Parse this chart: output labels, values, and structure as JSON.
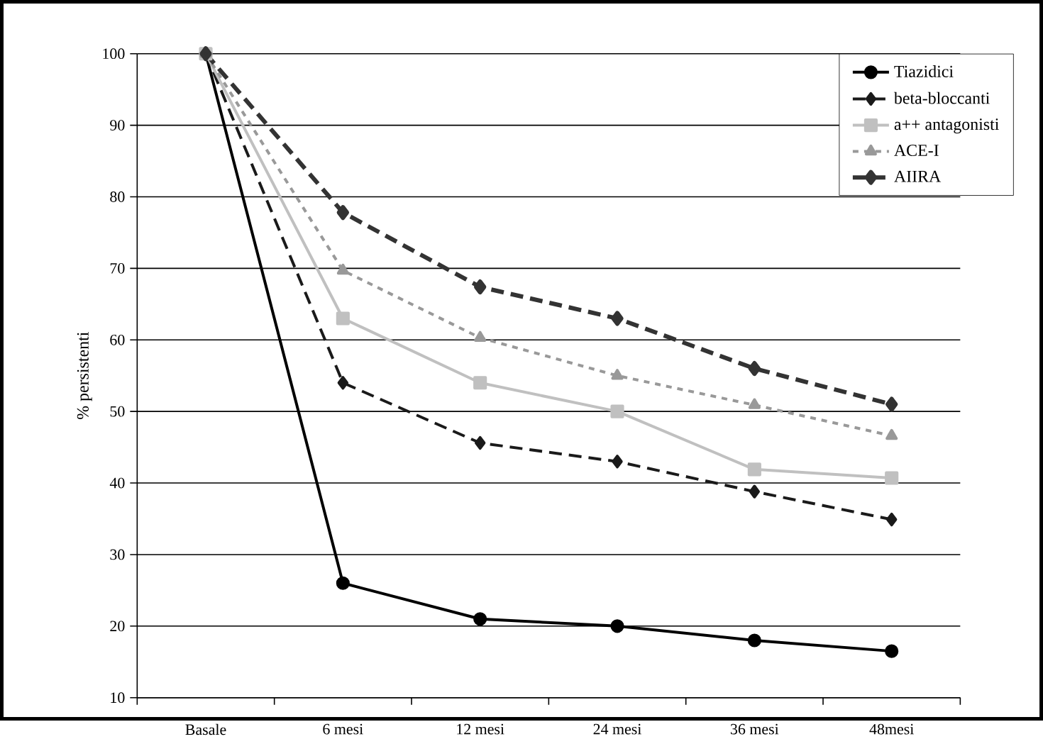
{
  "chart_data": {
    "type": "line",
    "ylabel": "% persistenti",
    "categories": [
      "Basale",
      "6 mesi",
      "12 mesi",
      "24 mesi",
      "36 mesi",
      "48mesi"
    ],
    "series": [
      {
        "name": "Tiazidici",
        "color": "#000000",
        "marker": "circle",
        "line_style": "solid",
        "values": [
          100,
          26,
          21,
          20,
          18,
          16.5
        ]
      },
      {
        "name": "beta-bloccanti",
        "color": "#1a1a1a",
        "marker": "diamond",
        "line_style": "dashed",
        "values": [
          100,
          54,
          45.6,
          43,
          38.8,
          34.9
        ]
      },
      {
        "name": "a++ antagonisti",
        "color": "#c0c0c0",
        "marker": "square",
        "line_style": "solid",
        "values": [
          100,
          63,
          54,
          50,
          41.9,
          40.7
        ]
      },
      {
        "name": "ACE-I",
        "color": "#999999",
        "marker": "triangle",
        "line_style": "dotted",
        "values": [
          100,
          69.7,
          60.3,
          55,
          50.9,
          46.6
        ]
      },
      {
        "name": "AIIRA",
        "color": "#333333",
        "marker": "diamond",
        "line_style": "dashed",
        "values": [
          100,
          77.8,
          67.4,
          63,
          56,
          51
        ]
      }
    ],
    "ylim": [
      10,
      100
    ],
    "yticks": [
      10,
      20,
      30,
      40,
      50,
      60,
      70,
      80,
      90,
      100
    ],
    "grid": "y",
    "legend": "top right"
  }
}
